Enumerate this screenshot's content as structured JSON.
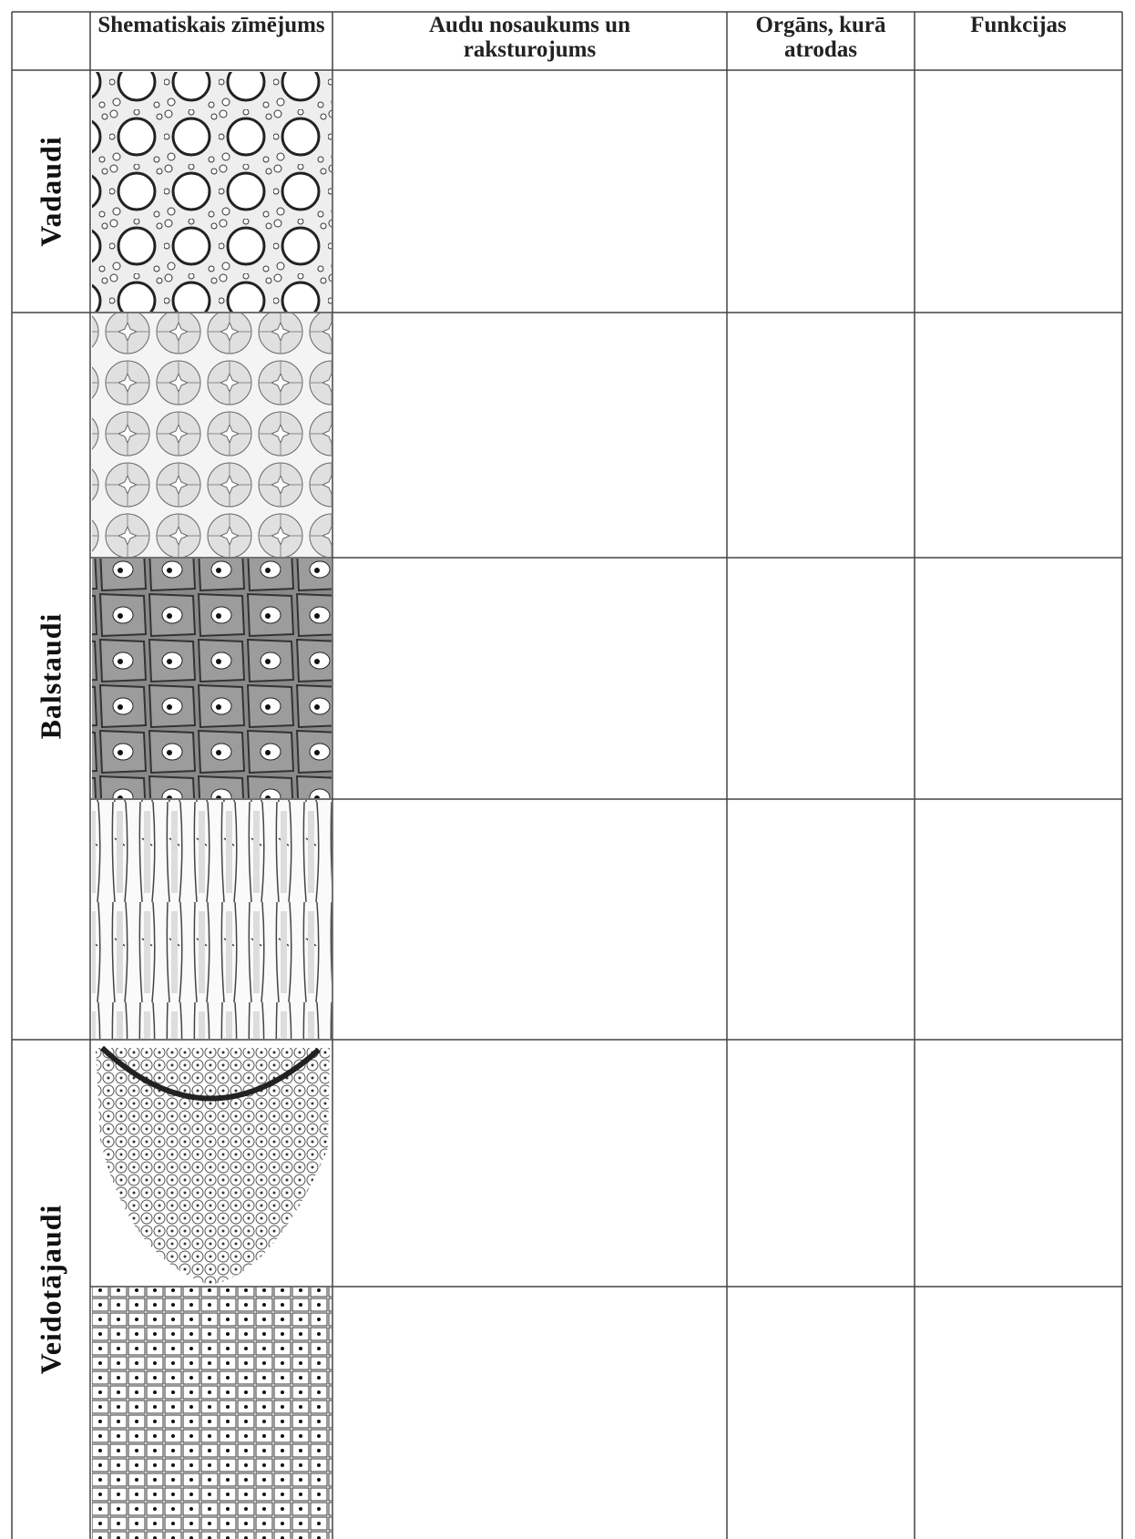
{
  "header": {
    "columns": [
      "Shematiskais zīmējums",
      "Audu nosaukums un raksturojums",
      "Orgāns, kurā atrodas",
      "Funkcijas"
    ]
  },
  "groups": [
    {
      "label": "Vadaudi"
    },
    {
      "label": "Balstaudi"
    },
    {
      "label": "Veidotājaudi"
    }
  ]
}
